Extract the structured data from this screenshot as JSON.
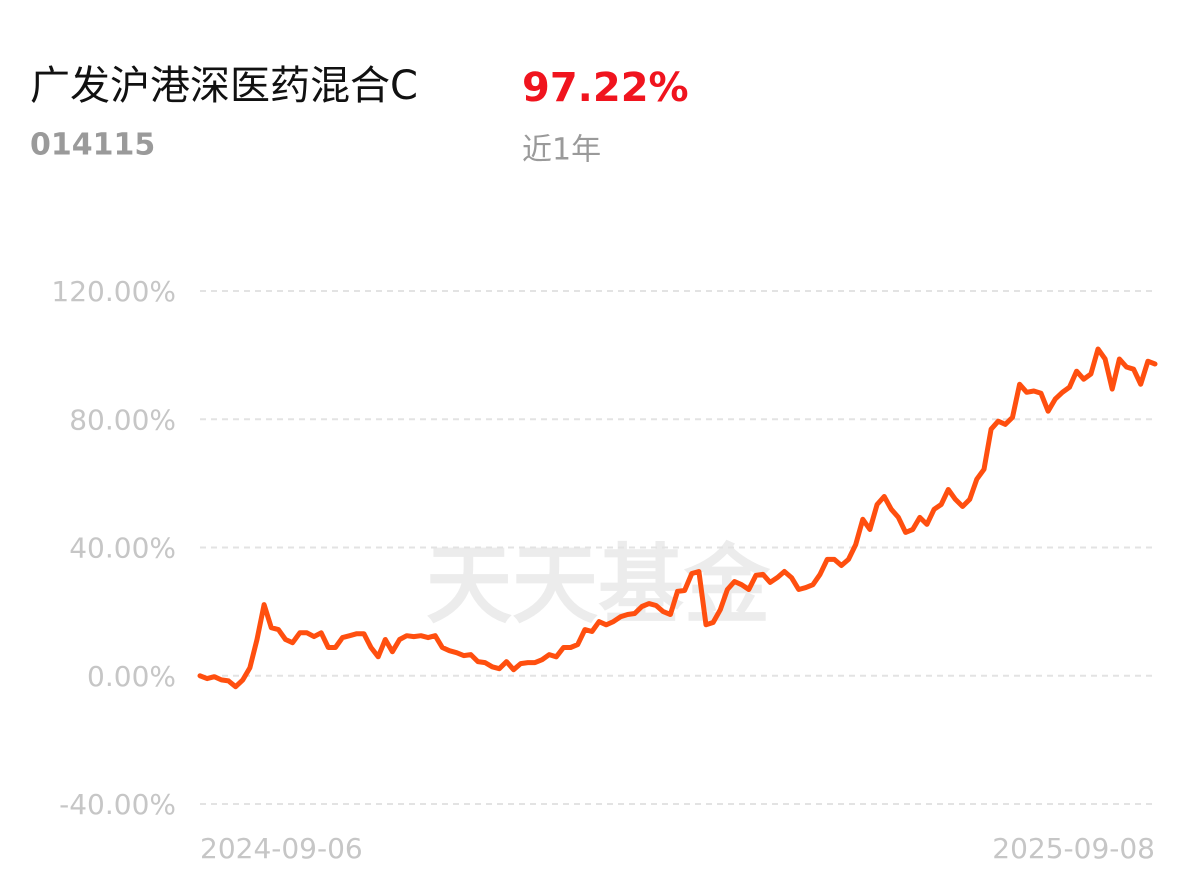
{
  "chart_data": {
    "type": "line",
    "title": "广发沪港深医药混合C",
    "return_text": "97.22%",
    "code": "014115",
    "period": "近1年",
    "watermark": "天天基金",
    "color": "#ff4f0f",
    "grid": true,
    "ylim": [
      -40,
      120
    ],
    "yticks": [
      {
        "value": -40,
        "label": "-40.00%"
      },
      {
        "value": 0,
        "label": "0.00%"
      },
      {
        "value": 40,
        "label": "40.00%"
      },
      {
        "value": 80,
        "label": "80.00%"
      },
      {
        "value": 120,
        "label": "120.00%"
      }
    ],
    "categories": [
      "2024-09-06",
      null,
      null,
      null,
      null,
      null,
      null,
      null,
      null,
      null,
      null,
      null,
      null,
      null,
      null,
      null,
      null,
      null,
      null,
      null,
      null,
      null,
      null,
      null,
      null,
      null,
      null,
      null,
      null,
      null,
      null,
      null,
      null,
      null,
      null,
      null,
      null,
      null,
      null,
      null,
      null,
      null,
      null,
      null,
      null,
      null,
      null,
      null,
      null,
      null,
      null,
      null,
      null,
      null,
      null,
      null,
      null,
      null,
      null,
      null,
      null,
      null,
      null,
      null,
      null,
      null,
      null,
      null,
      null,
      null,
      null,
      null,
      null,
      null,
      null,
      null,
      null,
      null,
      null,
      null,
      null,
      null,
      null,
      null,
      null,
      null,
      null,
      null,
      null,
      null,
      null,
      null,
      null,
      null,
      null,
      null,
      null,
      null,
      null,
      null,
      null,
      null,
      null,
      null,
      null,
      null,
      null,
      null,
      null,
      null,
      null,
      null,
      null,
      null,
      null,
      null,
      null,
      null,
      null,
      null,
      null,
      null,
      null,
      null,
      null,
      null,
      null,
      null,
      null,
      null,
      null,
      null,
      null,
      null,
      "2025-09-08"
    ],
    "values": [
      0,
      -0.9,
      -0.3,
      -1.3,
      -1.6,
      -3.4,
      -1.3,
      2.5,
      11.3,
      22.2,
      15,
      14.4,
      11.3,
      10.3,
      13.4,
      13.4,
      12.2,
      13.4,
      8.8,
      8.8,
      11.9,
      12.5,
      13.1,
      13.1,
      8.8,
      5.9,
      11.3,
      7.5,
      11.3,
      12.5,
      12.2,
      12.5,
      11.9,
      12.5,
      8.8,
      7.8,
      7.2,
      6.3,
      6.6,
      4.4,
      4.1,
      2.8,
      2.2,
      4.4,
      1.9,
      3.8,
      4.1,
      4.1,
      5,
      6.6,
      5.9,
      8.8,
      8.8,
      9.7,
      14.4,
      13.8,
      16.9,
      15.9,
      16.9,
      18.4,
      19.1,
      19.4,
      21.6,
      22.5,
      21.9,
      20,
      19.1,
      26.3,
      26.6,
      31.9,
      32.5,
      15.9,
      16.6,
      20.6,
      26.9,
      29.4,
      28.4,
      26.9,
      31.3,
      31.6,
      29.1,
      30.6,
      32.5,
      30.6,
      26.9,
      27.5,
      28.4,
      31.6,
      36.3,
      36.3,
      34.4,
      36.3,
      40.9,
      48.8,
      45.6,
      53.4,
      55.9,
      51.9,
      49.4,
      44.7,
      45.6,
      49.4,
      47.2,
      51.9,
      53.4,
      58.1,
      55,
      52.8,
      55,
      61.3,
      64.4,
      76.9,
      79.4,
      78.4,
      80.6,
      90.9,
      88.4,
      88.8,
      88.1,
      82.5,
      86.3,
      88.4,
      90,
      95,
      92.5,
      94.1,
      101.9,
      98.8,
      89.4,
      98.8,
      96.3,
      95.6,
      90.9,
      98.1,
      97.22
    ]
  }
}
